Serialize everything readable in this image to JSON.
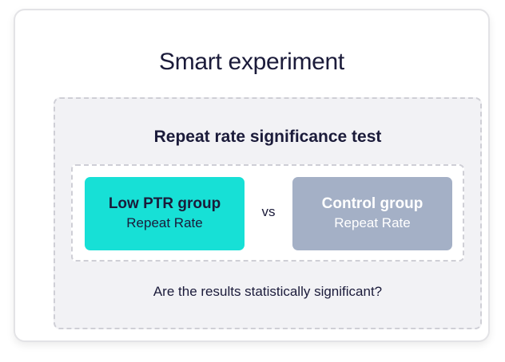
{
  "card": {
    "title": "Smart experiment"
  },
  "test": {
    "title": "Repeat rate significance test",
    "left_group": {
      "name": "Low PTR group",
      "metric": "Repeat Rate",
      "color": "#17e0d6"
    },
    "vs_label": "vs",
    "right_group": {
      "name": "Control group",
      "metric": "Repeat Rate",
      "color": "#a4b0c6"
    },
    "question": "Are the results statistically significant?"
  }
}
